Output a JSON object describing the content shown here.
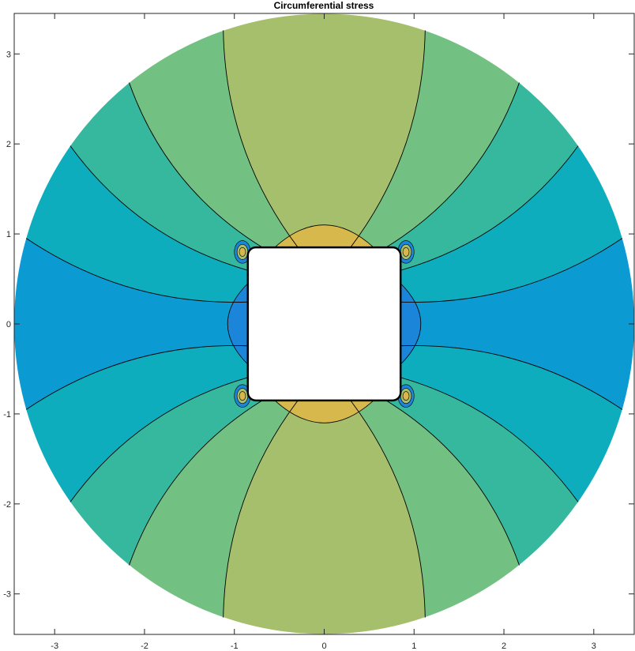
{
  "chart_data": {
    "type": "contour",
    "title": "Circumferential stress",
    "xlabel": "",
    "ylabel": "",
    "xlim": [
      -3.45,
      3.45
    ],
    "ylim": [
      -3.45,
      3.45
    ],
    "x_ticks": [
      -3,
      -2,
      -1,
      0,
      1,
      2,
      3
    ],
    "y_ticks": [
      -3,
      -2,
      -1,
      0,
      1,
      2,
      3
    ],
    "x_tick_labels": [
      "-3",
      "-2",
      "-1",
      "0",
      "1",
      "2",
      "3"
    ],
    "y_tick_labels": [
      "-3",
      "-2",
      "-1",
      "0",
      "1",
      "2",
      "3"
    ],
    "outer_radius": 3.45,
    "hole": {
      "shape": "rounded-square",
      "half_width": 0.85
    },
    "grid": false,
    "legend": "none",
    "contour_line_color": "#000000",
    "bands": [
      {
        "from_angle_deg": 0,
        "to_angle_deg": 16,
        "color": "#0b9ad1"
      },
      {
        "from_angle_deg": 16,
        "to_angle_deg": 35,
        "color": "#0eadbd"
      },
      {
        "from_angle_deg": 35,
        "to_angle_deg": 51,
        "color": "#36b89e"
      },
      {
        "from_angle_deg": 51,
        "to_angle_deg": 71,
        "color": "#73c083"
      },
      {
        "from_angle_deg": 71,
        "to_angle_deg": 109,
        "color": "#a6bf6c"
      },
      {
        "from_angle_deg": 109,
        "to_angle_deg": 129,
        "color": "#73c083"
      },
      {
        "from_angle_deg": 129,
        "to_angle_deg": 145,
        "color": "#36b89e"
      },
      {
        "from_angle_deg": 145,
        "to_angle_deg": 164,
        "color": "#0eadbd"
      },
      {
        "from_angle_deg": 164,
        "to_angle_deg": 196,
        "color": "#0b9ad1"
      },
      {
        "from_angle_deg": 196,
        "to_angle_deg": 215,
        "color": "#0eadbd"
      },
      {
        "from_angle_deg": 215,
        "to_angle_deg": 231,
        "color": "#36b89e"
      },
      {
        "from_angle_deg": 231,
        "to_angle_deg": 251,
        "color": "#73c083"
      },
      {
        "from_angle_deg": 251,
        "to_angle_deg": 289,
        "color": "#a6bf6c"
      },
      {
        "from_angle_deg": 289,
        "to_angle_deg": 309,
        "color": "#73c083"
      },
      {
        "from_angle_deg": 309,
        "to_angle_deg": 325,
        "color": "#36b89e"
      },
      {
        "from_angle_deg": 325,
        "to_angle_deg": 344,
        "color": "#0eadbd"
      },
      {
        "from_angle_deg": 344,
        "to_angle_deg": 360,
        "color": "#0b9ad1"
      }
    ],
    "concentration_regions": [
      {
        "side": "top",
        "color": "#d7b84c"
      },
      {
        "side": "bottom",
        "color": "#d7b84c"
      },
      {
        "side": "left",
        "color": "#1a85d9"
      },
      {
        "side": "right",
        "color": "#1a85d9"
      }
    ]
  }
}
